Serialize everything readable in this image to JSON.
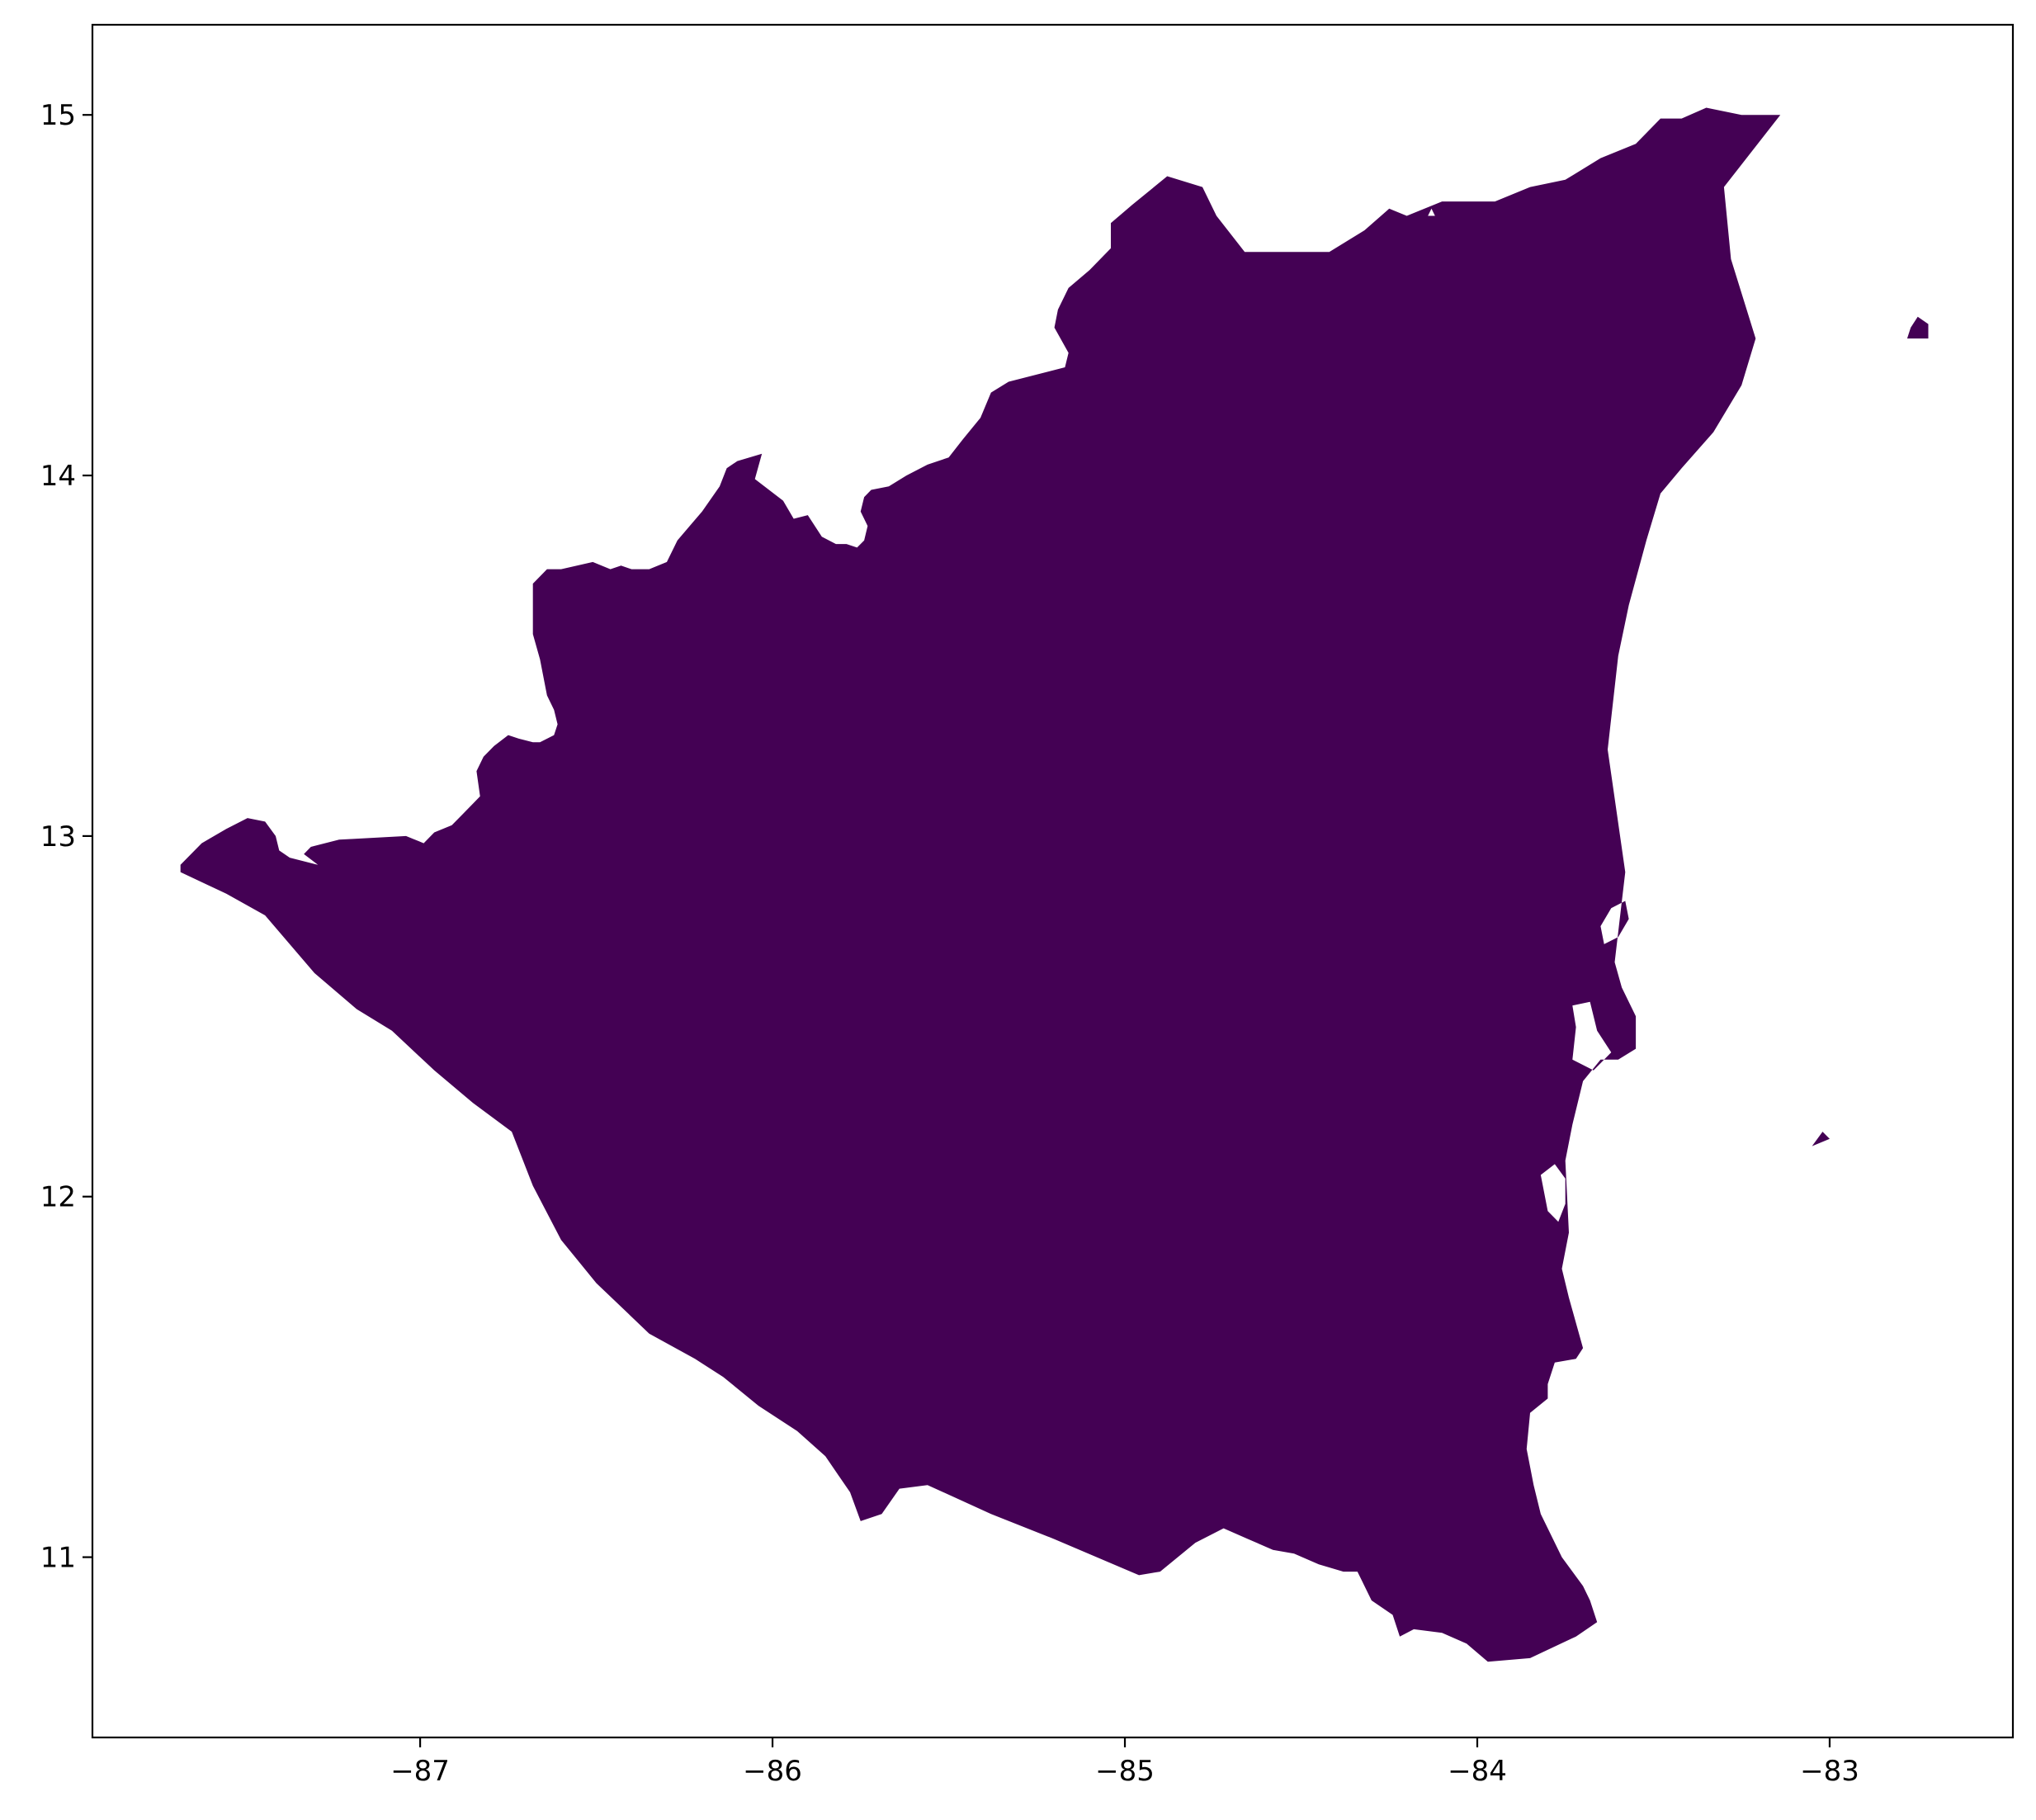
{
  "map": {
    "fill_color": "#440154",
    "background": "#ffffff",
    "x_ticks": [
      {
        "value": -87,
        "label": "−87"
      },
      {
        "value": -86,
        "label": "−86"
      },
      {
        "value": -85,
        "label": "−85"
      },
      {
        "value": -84,
        "label": "−84"
      },
      {
        "value": -83,
        "label": "−83"
      }
    ],
    "y_ticks": [
      {
        "value": 11,
        "label": "11"
      },
      {
        "value": 12,
        "label": "12"
      },
      {
        "value": 13,
        "label": "13"
      },
      {
        "value": 14,
        "label": "14"
      },
      {
        "value": 15,
        "label": "15"
      }
    ],
    "xlim": [
      -87.93,
      -82.48
    ],
    "ylim": [
      10.5,
      15.25
    ],
    "mainland": [
      [
        -87.68,
        12.92
      ],
      [
        -87.62,
        12.98
      ],
      [
        -87.55,
        13.02
      ],
      [
        -87.49,
        13.05
      ],
      [
        -87.44,
        13.04
      ],
      [
        -87.41,
        13.0
      ],
      [
        -87.4,
        12.96
      ],
      [
        -87.37,
        12.94
      ],
      [
        -87.29,
        12.92
      ],
      [
        -87.33,
        12.95
      ],
      [
        -87.31,
        12.97
      ],
      [
        -87.23,
        12.99
      ],
      [
        -87.04,
        13.0
      ],
      [
        -86.99,
        12.98
      ],
      [
        -86.96,
        13.01
      ],
      [
        -86.91,
        13.03
      ],
      [
        -86.88,
        13.06
      ],
      [
        -86.85,
        13.09
      ],
      [
        -86.83,
        13.11
      ],
      [
        -86.84,
        13.18
      ],
      [
        -86.82,
        13.22
      ],
      [
        -86.79,
        13.25
      ],
      [
        -86.75,
        13.28
      ],
      [
        -86.72,
        13.27
      ],
      [
        -86.68,
        13.26
      ],
      [
        -86.66,
        13.26
      ],
      [
        -86.62,
        13.28
      ],
      [
        -86.61,
        13.31
      ],
      [
        -86.62,
        13.35
      ],
      [
        -86.64,
        13.39
      ],
      [
        -86.66,
        13.49
      ],
      [
        -86.68,
        13.56
      ],
      [
        -86.68,
        13.7
      ],
      [
        -86.64,
        13.74
      ],
      [
        -86.6,
        13.74
      ],
      [
        -86.51,
        13.76
      ],
      [
        -86.46,
        13.74
      ],
      [
        -86.43,
        13.75
      ],
      [
        -86.4,
        13.74
      ],
      [
        -86.35,
        13.74
      ],
      [
        -86.3,
        13.76
      ],
      [
        -86.27,
        13.82
      ],
      [
        -86.2,
        13.9
      ],
      [
        -86.15,
        13.97
      ],
      [
        -86.13,
        14.02
      ],
      [
        -86.1,
        14.04
      ],
      [
        -86.03,
        14.06
      ],
      [
        -86.05,
        13.99
      ],
      [
        -85.97,
        13.93
      ],
      [
        -85.94,
        13.88
      ],
      [
        -85.9,
        13.89
      ],
      [
        -85.86,
        13.83
      ],
      [
        -85.82,
        13.81
      ],
      [
        -85.79,
        13.81
      ],
      [
        -85.76,
        13.8
      ],
      [
        -85.74,
        13.82
      ],
      [
        -85.73,
        13.86
      ],
      [
        -85.75,
        13.9
      ],
      [
        -85.74,
        13.94
      ],
      [
        -85.72,
        13.96
      ],
      [
        -85.67,
        13.97
      ],
      [
        -85.62,
        14.0
      ],
      [
        -85.56,
        14.03
      ],
      [
        -85.5,
        14.05
      ],
      [
        -85.46,
        14.1
      ],
      [
        -85.41,
        14.16
      ],
      [
        -85.38,
        14.23
      ],
      [
        -85.33,
        14.26
      ],
      [
        -85.25,
        14.28
      ],
      [
        -85.17,
        14.3
      ],
      [
        -85.16,
        14.34
      ],
      [
        -85.2,
        14.41
      ],
      [
        -85.19,
        14.46
      ],
      [
        -85.16,
        14.52
      ],
      [
        -85.1,
        14.57
      ],
      [
        -85.04,
        14.63
      ],
      [
        -85.04,
        14.7
      ],
      [
        -84.98,
        14.75
      ],
      [
        -84.88,
        14.83
      ],
      [
        -84.78,
        14.8
      ],
      [
        -84.74,
        14.72
      ],
      [
        -84.66,
        14.62
      ],
      [
        -84.5,
        14.62
      ],
      [
        -84.42,
        14.62
      ],
      [
        -84.32,
        14.68
      ],
      [
        -84.25,
        14.74
      ],
      [
        -84.2,
        14.72
      ],
      [
        -84.1,
        14.76
      ],
      [
        -83.95,
        14.76
      ],
      [
        -83.85,
        14.8
      ],
      [
        -83.75,
        14.82
      ],
      [
        -83.65,
        14.88
      ],
      [
        -83.55,
        14.92
      ],
      [
        -83.48,
        14.99
      ],
      [
        -83.42,
        14.99
      ],
      [
        -83.35,
        15.02
      ],
      [
        -83.25,
        15.0
      ],
      [
        -83.14,
        15.0
      ],
      [
        -83.3,
        14.8
      ],
      [
        -83.28,
        14.6
      ],
      [
        -83.21,
        14.38
      ],
      [
        -83.25,
        14.25
      ],
      [
        -83.33,
        14.12
      ],
      [
        -83.42,
        14.02
      ],
      [
        -83.48,
        13.95
      ],
      [
        -83.52,
        13.82
      ],
      [
        -83.57,
        13.64
      ],
      [
        -83.6,
        13.5
      ],
      [
        -83.63,
        13.24
      ],
      [
        -83.58,
        12.9
      ],
      [
        -83.61,
        12.65
      ],
      [
        -83.59,
        12.58
      ],
      [
        -83.55,
        12.5
      ],
      [
        -83.55,
        12.41
      ],
      [
        -83.6,
        12.38
      ],
      [
        -83.65,
        12.38
      ],
      [
        -83.7,
        12.32
      ],
      [
        -83.73,
        12.2
      ],
      [
        -83.75,
        12.1
      ],
      [
        -83.74,
        11.9
      ],
      [
        -83.76,
        11.8
      ],
      [
        -83.74,
        11.72
      ],
      [
        -83.7,
        11.58
      ],
      [
        -83.72,
        11.55
      ],
      [
        -83.78,
        11.54
      ],
      [
        -83.8,
        11.48
      ],
      [
        -83.8,
        11.44
      ],
      [
        -83.85,
        11.4
      ],
      [
        -83.86,
        11.3
      ],
      [
        -83.84,
        11.2
      ],
      [
        -83.82,
        11.12
      ],
      [
        -83.76,
        11.0
      ],
      [
        -83.7,
        10.92
      ],
      [
        -83.68,
        10.88
      ],
      [
        -83.66,
        10.82
      ],
      [
        -83.72,
        10.78
      ],
      [
        -83.85,
        10.72
      ],
      [
        -83.97,
        10.71
      ],
      [
        -84.03,
        10.76
      ],
      [
        -84.1,
        10.79
      ],
      [
        -84.18,
        10.8
      ],
      [
        -84.22,
        10.78
      ],
      [
        -84.24,
        10.84
      ],
      [
        -84.3,
        10.88
      ],
      [
        -84.34,
        10.96
      ],
      [
        -84.38,
        10.96
      ],
      [
        -84.45,
        10.98
      ],
      [
        -84.52,
        11.01
      ],
      [
        -84.58,
        11.02
      ],
      [
        -84.65,
        11.05
      ],
      [
        -84.72,
        11.08
      ],
      [
        -84.8,
        11.04
      ],
      [
        -84.9,
        10.96
      ],
      [
        -84.96,
        10.95
      ],
      [
        -85.2,
        11.05
      ],
      [
        -85.38,
        11.12
      ],
      [
        -85.56,
        11.2
      ],
      [
        -85.64,
        11.19
      ],
      [
        -85.69,
        11.12
      ],
      [
        -85.75,
        11.1
      ],
      [
        -85.78,
        11.18
      ],
      [
        -85.85,
        11.28
      ],
      [
        -85.93,
        11.35
      ],
      [
        -86.04,
        11.42
      ],
      [
        -86.14,
        11.5
      ],
      [
        -86.22,
        11.55
      ],
      [
        -86.35,
        11.62
      ],
      [
        -86.5,
        11.76
      ],
      [
        -86.6,
        11.88
      ],
      [
        -86.68,
        12.03
      ],
      [
        -86.74,
        12.18
      ],
      [
        -86.85,
        12.26
      ],
      [
        -86.96,
        12.35
      ],
      [
        -87.08,
        12.46
      ],
      [
        -87.18,
        12.52
      ],
      [
        -87.3,
        12.62
      ],
      [
        -87.44,
        12.78
      ],
      [
        -87.55,
        12.84
      ],
      [
        -87.68,
        12.9
      ]
    ],
    "islands": [
      [
        [
          -82.78,
          14.38
        ],
        [
          -82.72,
          14.38
        ],
        [
          -82.72,
          14.42
        ],
        [
          -82.75,
          14.44
        ],
        [
          -82.77,
          14.41
        ]
      ],
      [
        [
          -83.05,
          12.14
        ],
        [
          -83.02,
          12.18
        ],
        [
          -83.0,
          12.16
        ]
      ]
    ],
    "lagoons": [
      [
        [
          -83.65,
          12.75
        ],
        [
          -83.62,
          12.8
        ],
        [
          -83.58,
          12.82
        ],
        [
          -83.57,
          12.77
        ],
        [
          -83.6,
          12.72
        ],
        [
          -83.64,
          12.7
        ]
      ],
      [
        [
          -83.73,
          12.53
        ],
        [
          -83.68,
          12.54
        ],
        [
          -83.66,
          12.46
        ],
        [
          -83.62,
          12.4
        ],
        [
          -83.67,
          12.35
        ],
        [
          -83.73,
          12.38
        ],
        [
          -83.72,
          12.47
        ]
      ],
      [
        [
          -83.82,
          12.06
        ],
        [
          -83.78,
          12.09
        ],
        [
          -83.75,
          12.05
        ],
        [
          -83.75,
          11.98
        ],
        [
          -83.77,
          11.93
        ],
        [
          -83.8,
          11.96
        ]
      ],
      [
        [
          -84.14,
          14.72
        ],
        [
          -84.13,
          14.74
        ],
        [
          -84.12,
          14.72
        ]
      ]
    ]
  }
}
